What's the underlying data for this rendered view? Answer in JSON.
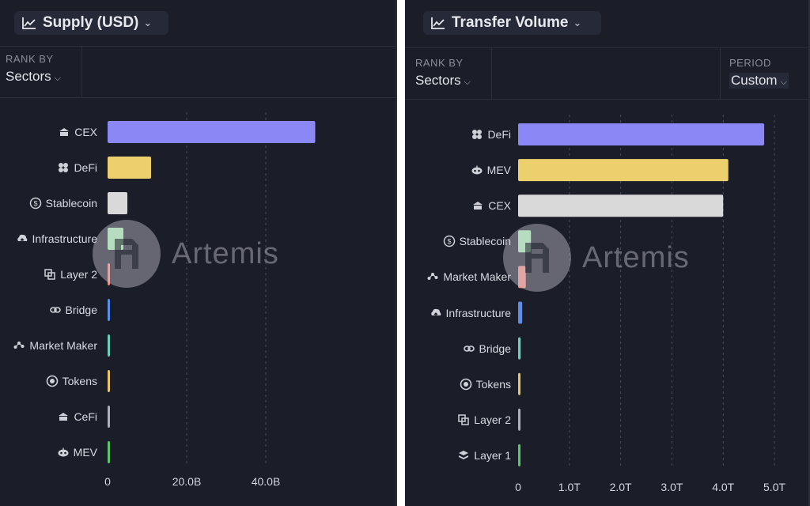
{
  "panels": [
    {
      "metric_label": "Supply (USD)",
      "rank_by_label": "RANK BY",
      "rank_by_value": "Sectors",
      "watermark": "Artemis",
      "icon_names": [
        "cex-icon",
        "defi-icon",
        "stablecoin-icon",
        "infrastructure-icon",
        "layer2-icon",
        "bridge-icon",
        "market-maker-icon",
        "tokens-icon",
        "cefi-icon",
        "mev-icon"
      ]
    },
    {
      "metric_label": "Transfer Volume",
      "rank_by_label": "RANK BY",
      "rank_by_value": "Sectors",
      "period_label": "PERIOD",
      "period_value": "Custom",
      "watermark": "Artemis",
      "icon_names": [
        "defi-icon",
        "mev-icon",
        "cex-icon",
        "stablecoin-icon",
        "market-maker-icon",
        "infrastructure-icon",
        "bridge-icon",
        "tokens-icon",
        "layer2-icon",
        "layer1-icon"
      ]
    }
  ],
  "chart_data": [
    {
      "type": "bar",
      "orientation": "horizontal",
      "title": "Supply (USD)",
      "categories": [
        "CEX",
        "DeFi",
        "Stablecoin",
        "Infrastructure",
        "Layer 2",
        "Bridge",
        "Market Maker",
        "Tokens",
        "CeFi",
        "MEV"
      ],
      "values": [
        52.5,
        11,
        5,
        4,
        0.6,
        0.5,
        0.5,
        0.4,
        0.3,
        0.3
      ],
      "colors": [
        "#8b87f5",
        "#ecd06e",
        "#d9d9d9",
        "#a6e8b0",
        "#f08a80",
        "#5b8def",
        "#6ad1b8",
        "#e8c46a",
        "#b0b0b8",
        "#59c96d"
      ],
      "x_ticks": [
        "0",
        "20.0B",
        "40.0B"
      ],
      "x_tick_values": [
        0,
        20,
        40
      ],
      "unit": "B",
      "xlim": [
        0,
        70
      ],
      "grid": true
    },
    {
      "type": "bar",
      "orientation": "horizontal",
      "title": "Transfer Volume",
      "categories": [
        "DeFi",
        "MEV",
        "CEX",
        "Stablecoin",
        "Market Maker",
        "Infrastructure",
        "Bridge",
        "Tokens",
        "Layer 2",
        "Layer 1"
      ],
      "values": [
        4.8,
        4.1,
        4.0,
        0.25,
        0.15,
        0.08,
        0.05,
        0.04,
        0.03,
        0.03
      ],
      "colors": [
        "#8b87f5",
        "#ecd06e",
        "#d9d9d9",
        "#a6e8b0",
        "#f08a80",
        "#5b8def",
        "#6ad1b8",
        "#e8c46a",
        "#b0b0b8",
        "#59c96d"
      ],
      "x_ticks": [
        "0",
        "1.0T",
        "2.0T",
        "3.0T",
        "4.0T",
        "5.0T"
      ],
      "x_tick_values": [
        0,
        1,
        2,
        3,
        4,
        5
      ],
      "unit": "T",
      "xlim": [
        0,
        5.2
      ],
      "grid": true
    }
  ]
}
